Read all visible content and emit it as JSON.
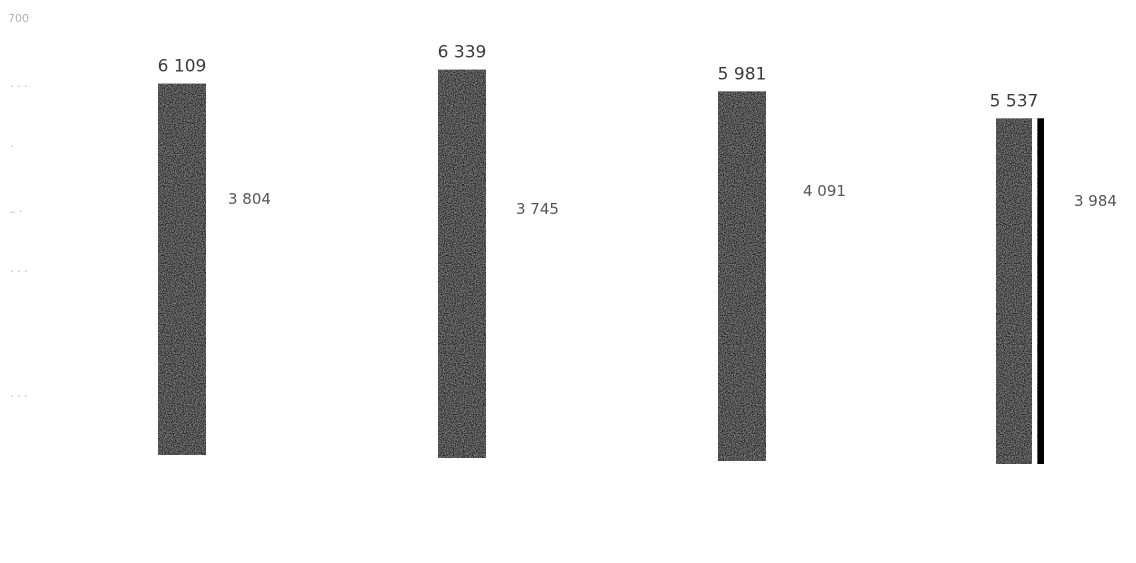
{
  "chart_data": {
    "type": "bar",
    "categories": [
      "",
      "",
      "",
      ""
    ],
    "series": [
      {
        "values": [
          6109,
          6339,
          5981,
          5537
        ]
      },
      {
        "values": [
          3804,
          3745,
          4091,
          3984
        ]
      }
    ],
    "labels_primary": [
      "6 109",
      "6 339",
      "5 981",
      "5 537"
    ],
    "labels_secondary": [
      "3 804",
      "3 745",
      "4 091",
      "3 984"
    ],
    "yaxis_top_label": "700",
    "title": "",
    "xlabel": "",
    "ylabel": "",
    "ylim": [
      0,
      7000
    ],
    "grid": false,
    "legend": "none",
    "colors": {
      "bar": "#1c1c1c",
      "bar_noise": "#6e6e6e",
      "accent_line": "#000000"
    }
  }
}
